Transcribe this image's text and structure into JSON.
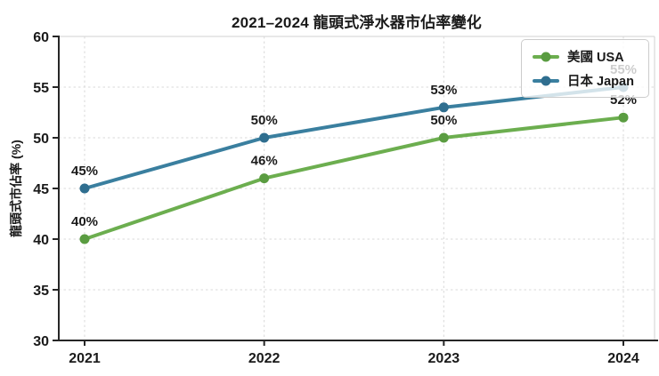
{
  "chart_data": {
    "type": "line",
    "title": "2021–2024 龍頭式淨水器市佔率變化",
    "ylabel": "龍頭式市佔率 (%)",
    "xlabel": "",
    "categories": [
      "2021",
      "2022",
      "2023",
      "2024"
    ],
    "series": [
      {
        "name": "美國 USA",
        "values": [
          40,
          46,
          50,
          52
        ],
        "labels": [
          "40%",
          "46%",
          "50%",
          "52%"
        ],
        "color": "#6cae4f",
        "marker_color": "#5a9c41"
      },
      {
        "name": "日本 Japan",
        "values": [
          45,
          50,
          53,
          55
        ],
        "labels": [
          "45%",
          "50%",
          "53%",
          "55%"
        ],
        "color": "#3a7f9f",
        "marker_color": "#2f6e8f"
      }
    ],
    "ylim": [
      30,
      60
    ],
    "yticks": [
      30,
      35,
      40,
      45,
      50,
      55,
      60
    ],
    "grid": "dashed both axes",
    "legend_position": "top-right",
    "colors": {
      "text": "#1a1a1a",
      "grid": "#d9d9d9",
      "spine": "#262626",
      "background": "#ffffff"
    }
  }
}
